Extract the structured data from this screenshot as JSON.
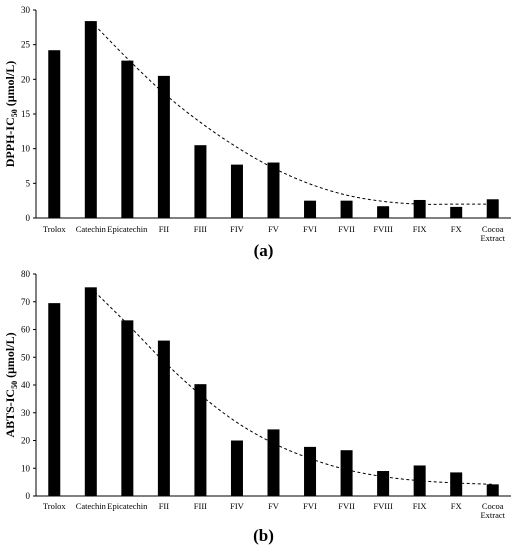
{
  "chart_data": [
    {
      "type": "bar",
      "panel_label": "(a)",
      "ylabel": {
        "main": "DPPH-IC",
        "sub": "50",
        "unit": " (μmol/L)"
      },
      "ylim": [
        0,
        30
      ],
      "yticks": [
        0,
        5,
        10,
        15,
        20,
        25,
        30
      ],
      "categories": [
        "Trolox",
        "Catechin",
        "Epicatechin",
        "FII",
        "FIII",
        "FIV",
        "FV",
        "FVI",
        "FVII",
        "FVIII",
        "FIX",
        "FX",
        [
          "Cocoa",
          "Extract"
        ]
      ],
      "values": [
        24.2,
        28.4,
        22.7,
        20.5,
        10.5,
        7.7,
        8.0,
        2.5,
        2.5,
        1.7,
        2.6,
        1.6,
        2.7
      ],
      "trendline": {
        "style": "dashed",
        "from_index": 1,
        "to_index": 12,
        "y": [
          28.4,
          23.0,
          18.0,
          13.8,
          10.2,
          7.2,
          4.9,
          3.3,
          2.4,
          2.0,
          2.0,
          2.0
        ]
      },
      "grid": false,
      "legend": "none"
    },
    {
      "type": "bar",
      "panel_label": "(b)",
      "ylabel": {
        "main": "ABTS-IC",
        "sub": "50",
        "unit": " (μmol/L)"
      },
      "ylim": [
        0,
        80
      ],
      "yticks": [
        0,
        10,
        20,
        30,
        40,
        50,
        60,
        70,
        80
      ],
      "categories": [
        "Trolox",
        "Catechin",
        "Epicatechin",
        "FII",
        "FIII",
        "FIV",
        "FV",
        "FVI",
        "FVII",
        "FVIII",
        "FIX",
        "FX",
        [
          "Cocoa",
          "Extract"
        ]
      ],
      "values": [
        69.5,
        75.2,
        63.3,
        56.0,
        40.3,
        20.0,
        24.0,
        17.7,
        16.5,
        9.0,
        11.0,
        8.5,
        4.2
      ],
      "trendline": {
        "style": "dashed",
        "from_index": 1,
        "to_index": 12,
        "y": [
          75.0,
          62.0,
          48.5,
          36.5,
          26.5,
          19.0,
          13.5,
          9.5,
          7.0,
          5.5,
          4.7,
          4.2
        ]
      },
      "grid": false,
      "legend": "none"
    }
  ]
}
